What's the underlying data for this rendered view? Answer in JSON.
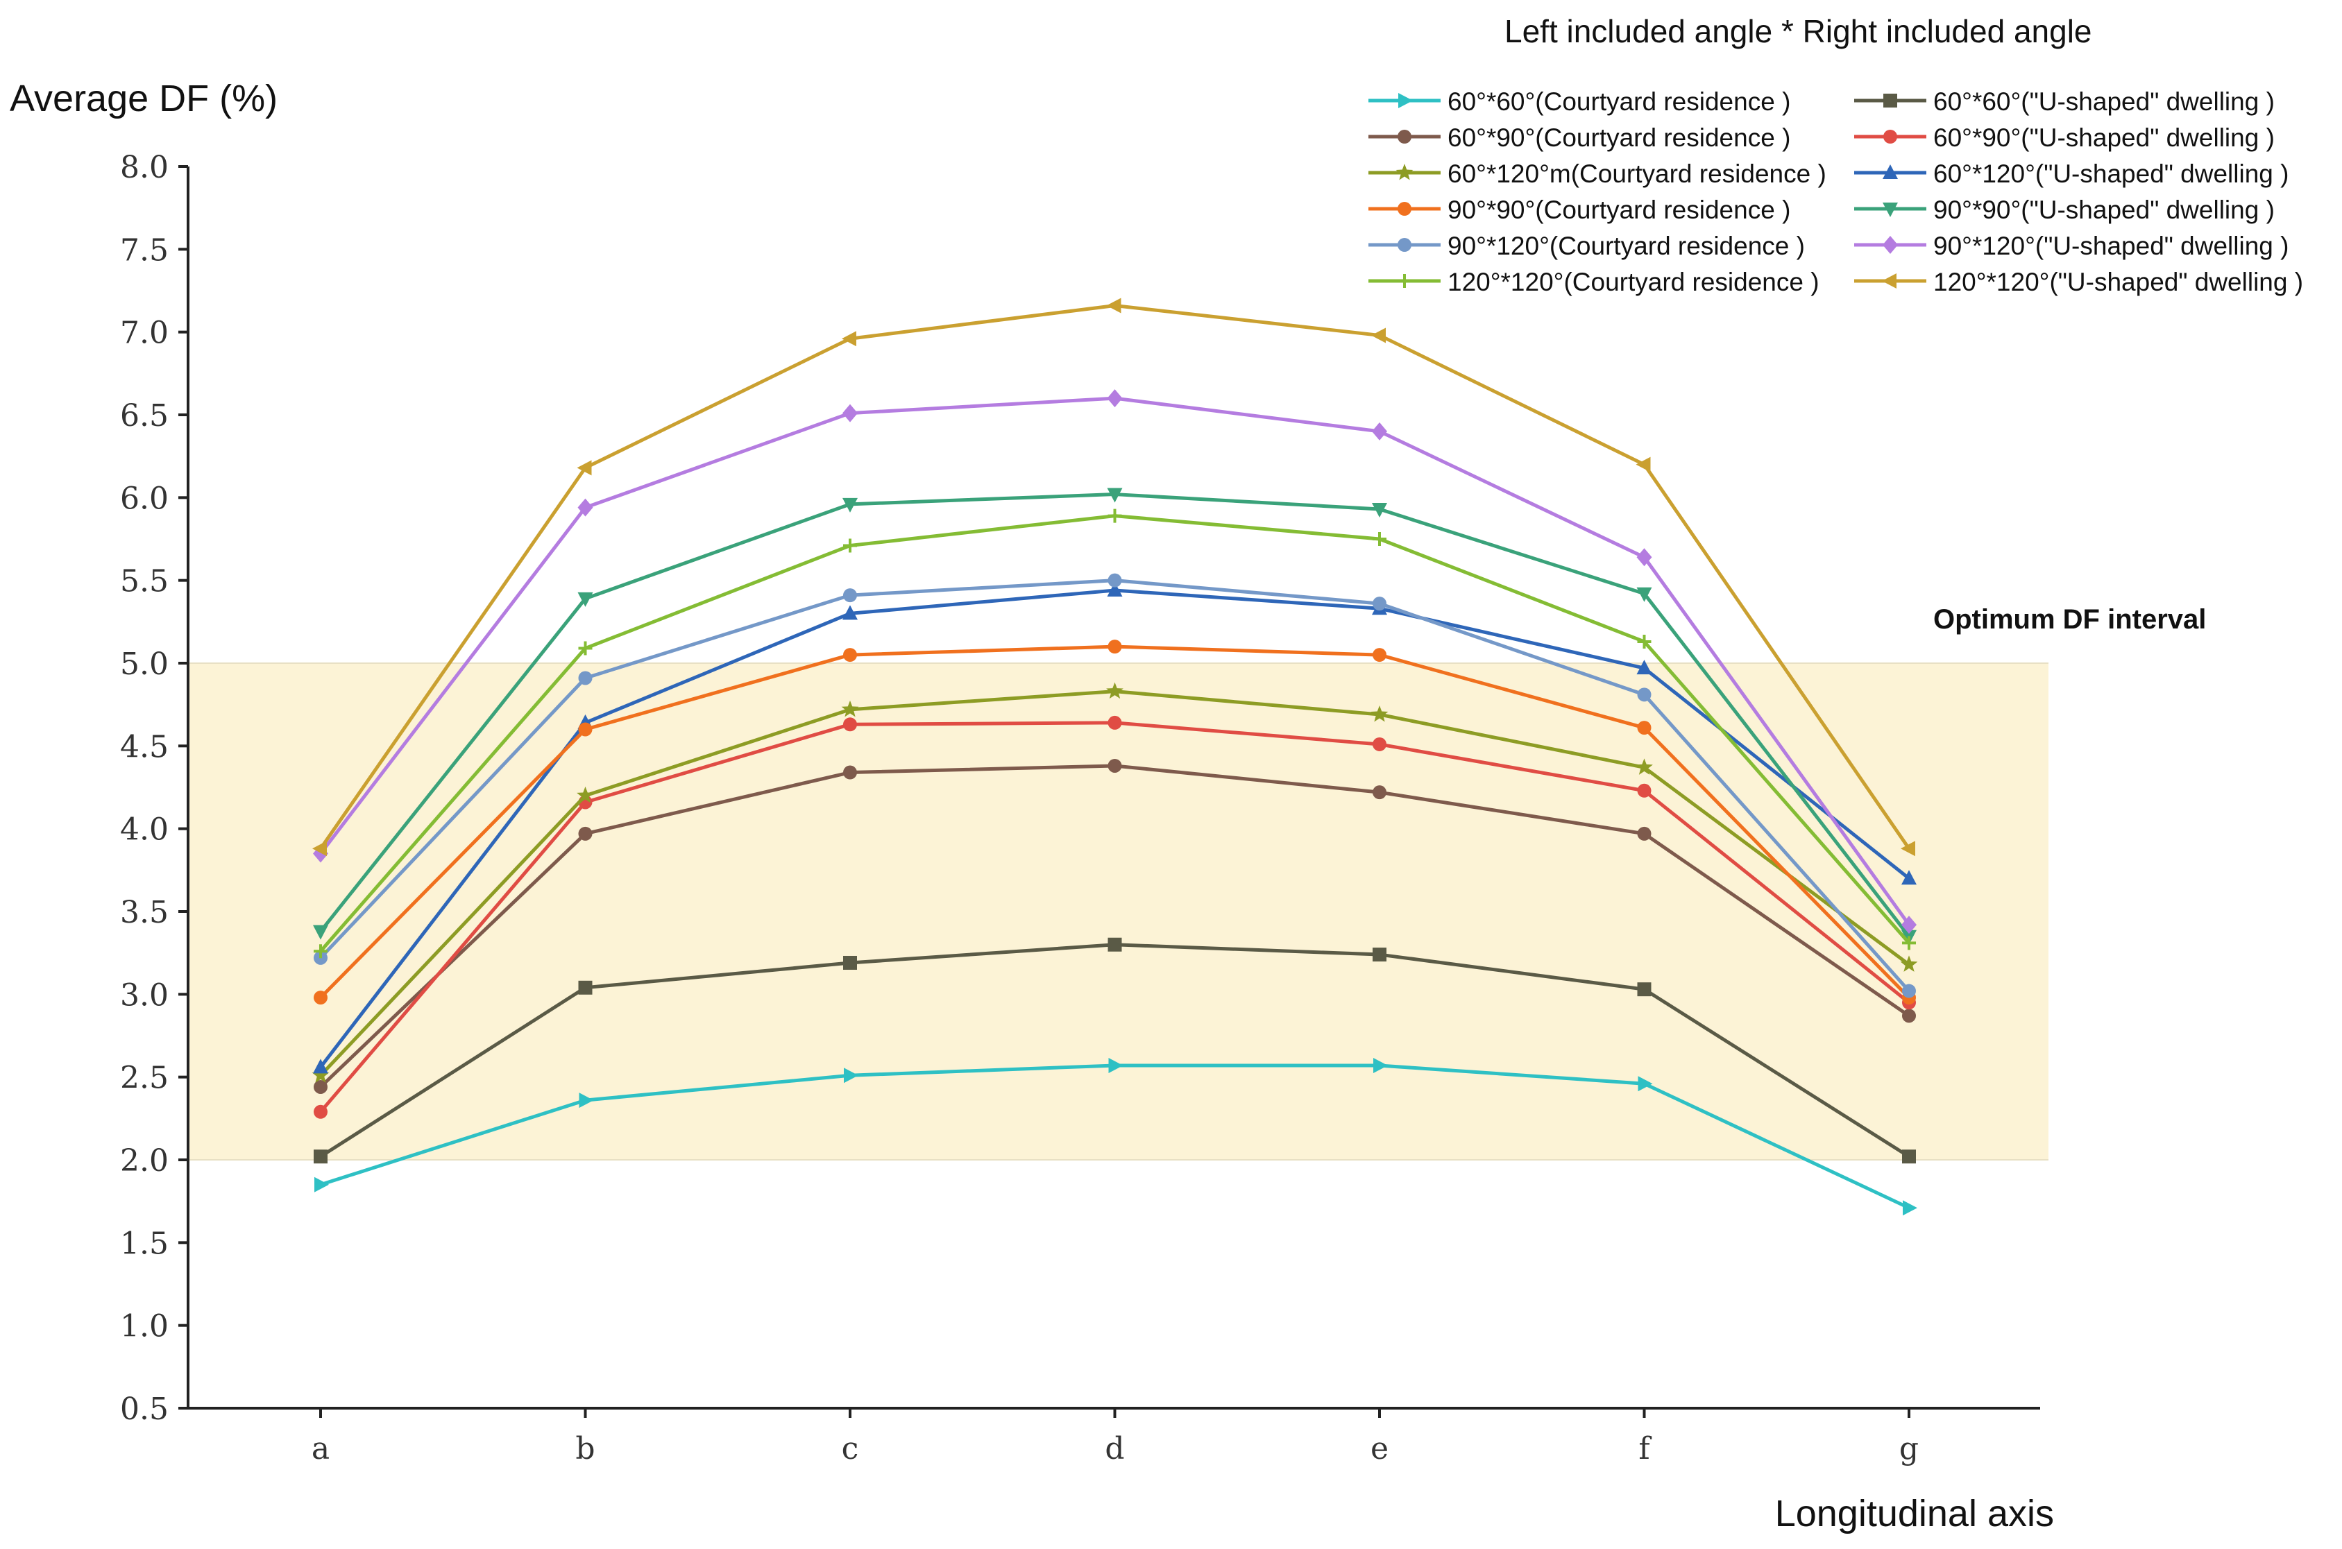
{
  "chart_data": {
    "type": "line",
    "ylabel": "Average DF (%)",
    "xlabel": "Longitudinal axis",
    "legend_title": "Left included angle * Right included angle",
    "band_label": "Optimum DF interval",
    "band": [
      2.0,
      5.0
    ],
    "band_color": "#fcf3d6",
    "ylim": [
      0.5,
      8.0
    ],
    "yticks": [
      "0.5",
      "1.0",
      "1.5",
      "2.0",
      "2.5",
      "3.0",
      "3.5",
      "4.0",
      "4.5",
      "5.0",
      "5.5",
      "6.0",
      "6.5",
      "7.0",
      "7.5",
      "8.0"
    ],
    "categories": [
      "a",
      "b",
      "c",
      "d",
      "e",
      "f",
      "g"
    ],
    "legend_placement": "top-right",
    "series": [
      {
        "name": "60°*60°(Courtyard residence )",
        "color": "#2ec0c4",
        "marker": "triangle-right",
        "values": [
          1.85,
          2.36,
          2.51,
          2.57,
          2.57,
          2.46,
          1.71
        ]
      },
      {
        "name": "60°*60°(\"U-shaped\" dwelling )",
        "color": "#5a5a46",
        "marker": "square",
        "values": [
          2.02,
          3.04,
          3.19,
          3.3,
          3.24,
          3.03,
          2.02
        ]
      },
      {
        "name": "60°*90°(Courtyard residence )",
        "color": "#7e5a4c",
        "marker": "circle",
        "values": [
          2.44,
          3.97,
          4.34,
          4.38,
          4.22,
          3.97,
          2.87
        ]
      },
      {
        "name": "60°*90°(\"U-shaped\" dwelling )",
        "color": "#e04c44",
        "marker": "circle",
        "values": [
          2.29,
          4.16,
          4.63,
          4.64,
          4.51,
          4.23,
          2.95
        ]
      },
      {
        "name": "60°*120°m(Courtyard residence )",
        "color": "#8d9c24",
        "marker": "star",
        "values": [
          2.51,
          4.2,
          4.72,
          4.83,
          4.69,
          4.37,
          3.18
        ]
      },
      {
        "name": "60°*120°(\"U-shaped\" dwelling )",
        "color": "#2e66b8",
        "marker": "triangle-up",
        "values": [
          2.56,
          4.64,
          5.3,
          5.44,
          5.33,
          4.97,
          3.7
        ]
      },
      {
        "name": "90°*90°(Courtyard residence )",
        "color": "#f0701e",
        "marker": "circle",
        "values": [
          2.98,
          4.6,
          5.05,
          5.1,
          5.05,
          4.61,
          2.98
        ]
      },
      {
        "name": "90°*90°(\"U-shaped\" dwelling )",
        "color": "#3aa27a",
        "marker": "triangle-down",
        "values": [
          3.38,
          5.39,
          5.96,
          6.02,
          5.93,
          5.42,
          3.35
        ]
      },
      {
        "name": "90°*120°(Courtyard residence )",
        "color": "#7498c8",
        "marker": "circle",
        "values": [
          3.22,
          4.91,
          5.41,
          5.5,
          5.36,
          4.81,
          3.02
        ]
      },
      {
        "name": "90°*120°(\"U-shaped\" dwelling )",
        "color": "#b47ce0",
        "marker": "diamond",
        "values": [
          3.85,
          5.94,
          6.51,
          6.6,
          6.4,
          5.64,
          3.42
        ]
      },
      {
        "name": "120°*120°(Courtyard residence )",
        "color": "#84bc34",
        "marker": "plus",
        "values": [
          3.26,
          5.09,
          5.71,
          5.89,
          5.75,
          5.13,
          3.31
        ]
      },
      {
        "name": "120°*120°(\"U-shaped\" dwelling )",
        "color": "#caa030",
        "marker": "triangle-left",
        "values": [
          3.88,
          6.18,
          6.96,
          7.16,
          6.98,
          6.2,
          3.88
        ]
      }
    ]
  }
}
